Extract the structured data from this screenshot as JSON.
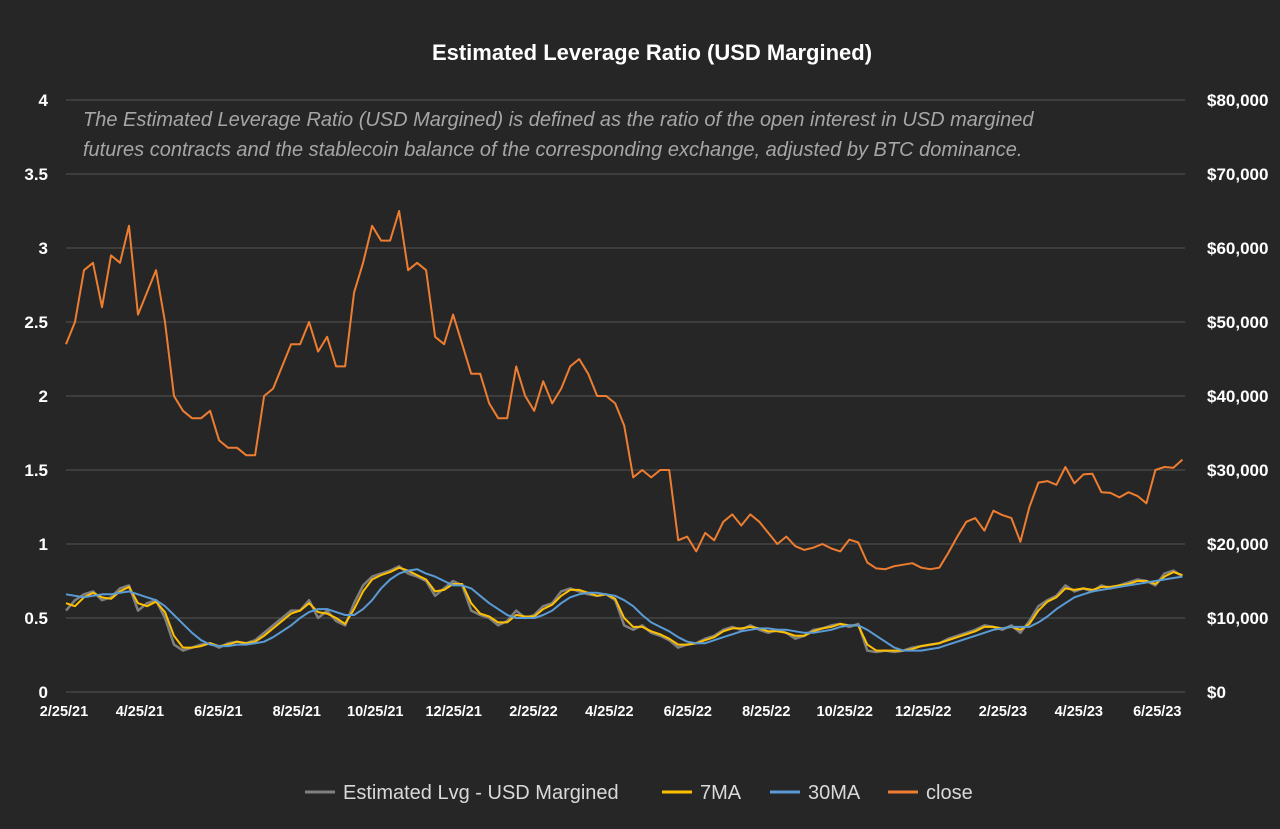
{
  "chart_data": {
    "type": "line",
    "title": "Estimated Leverage Ratio (USD Margined)",
    "annotation": {
      "line1": "The Estimated Leverage Ratio (USD Margined) is defined as the ratio of the open interest in USD margined",
      "line2": "futures contracts and the stablecoin balance of the corresponding exchange, adjusted by BTC dominance."
    },
    "xlim": [
      "2021-02-25",
      "2023-07-15"
    ],
    "x_ticks": [
      {
        "date": "2021-02-25",
        "label": "2/25/21"
      },
      {
        "date": "2021-04-25",
        "label": "4/25/21"
      },
      {
        "date": "2021-06-25",
        "label": "6/25/21"
      },
      {
        "date": "2021-08-25",
        "label": "8/25/21"
      },
      {
        "date": "2021-10-25",
        "label": "10/25/21"
      },
      {
        "date": "2021-12-25",
        "label": "12/25/21"
      },
      {
        "date": "2022-02-25",
        "label": "2/25/22"
      },
      {
        "date": "2022-04-25",
        "label": "4/25/22"
      },
      {
        "date": "2022-06-25",
        "label": "6/25/22"
      },
      {
        "date": "2022-08-25",
        "label": "8/25/22"
      },
      {
        "date": "2022-10-25",
        "label": "10/25/22"
      },
      {
        "date": "2022-12-25",
        "label": "12/25/22"
      },
      {
        "date": "2023-02-25",
        "label": "2/25/23"
      },
      {
        "date": "2023-04-25",
        "label": "4/25/23"
      },
      {
        "date": "2023-06-25",
        "label": "6/25/23"
      }
    ],
    "y_left": {
      "lim": [
        0,
        4
      ],
      "ticks": [
        {
          "v": 0,
          "label": "0"
        },
        {
          "v": 0.5,
          "label": "0.5"
        },
        {
          "v": 1,
          "label": "1"
        },
        {
          "v": 1.5,
          "label": "1.5"
        },
        {
          "v": 2,
          "label": "2"
        },
        {
          "v": 2.5,
          "label": "2.5"
        },
        {
          "v": 3,
          "label": "3"
        },
        {
          "v": 3.5,
          "label": "3.5"
        },
        {
          "v": 4,
          "label": "4"
        }
      ]
    },
    "y_right": {
      "lim": [
        0,
        80000
      ],
      "ticks": [
        {
          "v": 0,
          "label": "$0"
        },
        {
          "v": 10000,
          "label": "$10,000"
        },
        {
          "v": 20000,
          "label": "$20,000"
        },
        {
          "v": 30000,
          "label": "$30,000"
        },
        {
          "v": 40000,
          "label": "$40,000"
        },
        {
          "v": 50000,
          "label": "$50,000"
        },
        {
          "v": 60000,
          "label": "$60,000"
        },
        {
          "v": 70000,
          "label": "$70,000"
        },
        {
          "v": 80000,
          "label": "$80,000"
        }
      ]
    },
    "grid": true,
    "legend_position": "bottom",
    "x": [
      "2021-02-25",
      "2021-03-04",
      "2021-03-11",
      "2021-03-18",
      "2021-03-25",
      "2021-04-01",
      "2021-04-08",
      "2021-04-15",
      "2021-04-22",
      "2021-04-29",
      "2021-05-06",
      "2021-05-13",
      "2021-05-20",
      "2021-05-27",
      "2021-06-03",
      "2021-06-10",
      "2021-06-17",
      "2021-06-24",
      "2021-07-01",
      "2021-07-08",
      "2021-07-15",
      "2021-07-22",
      "2021-07-29",
      "2021-08-05",
      "2021-08-12",
      "2021-08-19",
      "2021-08-26",
      "2021-09-02",
      "2021-09-09",
      "2021-09-16",
      "2021-09-23",
      "2021-09-30",
      "2021-10-07",
      "2021-10-14",
      "2021-10-21",
      "2021-10-28",
      "2021-11-04",
      "2021-11-11",
      "2021-11-18",
      "2021-11-25",
      "2021-12-02",
      "2021-12-09",
      "2021-12-16",
      "2021-12-23",
      "2021-12-30",
      "2022-01-06",
      "2022-01-13",
      "2022-01-20",
      "2022-01-27",
      "2022-02-03",
      "2022-02-10",
      "2022-02-17",
      "2022-02-24",
      "2022-03-03",
      "2022-03-10",
      "2022-03-17",
      "2022-03-24",
      "2022-03-31",
      "2022-04-07",
      "2022-04-14",
      "2022-04-21",
      "2022-04-28",
      "2022-05-05",
      "2022-05-12",
      "2022-05-19",
      "2022-05-26",
      "2022-06-02",
      "2022-06-09",
      "2022-06-16",
      "2022-06-23",
      "2022-06-30",
      "2022-07-07",
      "2022-07-14",
      "2022-07-21",
      "2022-07-28",
      "2022-08-04",
      "2022-08-11",
      "2022-08-18",
      "2022-08-25",
      "2022-09-01",
      "2022-09-08",
      "2022-09-15",
      "2022-09-22",
      "2022-09-29",
      "2022-10-06",
      "2022-10-13",
      "2022-10-20",
      "2022-10-27",
      "2022-11-03",
      "2022-11-10",
      "2022-11-17",
      "2022-11-24",
      "2022-12-01",
      "2022-12-08",
      "2022-12-15",
      "2022-12-22",
      "2022-12-29",
      "2023-01-05",
      "2023-01-12",
      "2023-01-19",
      "2023-01-26",
      "2023-02-02",
      "2023-02-09",
      "2023-02-16",
      "2023-02-23",
      "2023-03-02",
      "2023-03-09",
      "2023-03-16",
      "2023-03-23",
      "2023-03-30",
      "2023-04-06",
      "2023-04-13",
      "2023-04-20",
      "2023-04-27",
      "2023-05-04",
      "2023-05-11",
      "2023-05-18",
      "2023-05-25",
      "2023-06-01",
      "2023-06-08",
      "2023-06-15",
      "2023-06-22",
      "2023-06-29",
      "2023-07-06",
      "2023-07-13"
    ],
    "series": [
      {
        "name": "Estimated Lvg - USD Margined",
        "axis": "left",
        "color": "#7f7f7f",
        "values": [
          0.55,
          0.62,
          0.66,
          0.68,
          0.62,
          0.64,
          0.7,
          0.72,
          0.55,
          0.6,
          0.62,
          0.5,
          0.32,
          0.28,
          0.3,
          0.32,
          0.33,
          0.3,
          0.33,
          0.34,
          0.33,
          0.35,
          0.4,
          0.45,
          0.5,
          0.55,
          0.55,
          0.62,
          0.5,
          0.55,
          0.48,
          0.45,
          0.6,
          0.72,
          0.78,
          0.8,
          0.82,
          0.85,
          0.8,
          0.78,
          0.75,
          0.65,
          0.7,
          0.75,
          0.72,
          0.55,
          0.52,
          0.5,
          0.45,
          0.48,
          0.55,
          0.5,
          0.52,
          0.58,
          0.6,
          0.68,
          0.7,
          0.68,
          0.66,
          0.65,
          0.66,
          0.62,
          0.45,
          0.42,
          0.45,
          0.4,
          0.38,
          0.35,
          0.3,
          0.32,
          0.33,
          0.36,
          0.38,
          0.42,
          0.44,
          0.42,
          0.45,
          0.42,
          0.4,
          0.42,
          0.4,
          0.36,
          0.38,
          0.42,
          0.43,
          0.45,
          0.46,
          0.44,
          0.46,
          0.28,
          0.27,
          0.28,
          0.27,
          0.28,
          0.3,
          0.31,
          0.32,
          0.33,
          0.36,
          0.38,
          0.4,
          0.42,
          0.45,
          0.44,
          0.42,
          0.45,
          0.4,
          0.48,
          0.58,
          0.62,
          0.65,
          0.72,
          0.68,
          0.7,
          0.68,
          0.72,
          0.7,
          0.72,
          0.74,
          0.76,
          0.75,
          0.72,
          0.8,
          0.82,
          0.78
        ]
      },
      {
        "name": "7MA",
        "axis": "left",
        "color": "#ffc000",
        "values": [
          0.6,
          0.58,
          0.64,
          0.67,
          0.64,
          0.63,
          0.68,
          0.71,
          0.6,
          0.58,
          0.61,
          0.54,
          0.38,
          0.3,
          0.3,
          0.31,
          0.33,
          0.31,
          0.32,
          0.34,
          0.33,
          0.34,
          0.38,
          0.43,
          0.48,
          0.53,
          0.55,
          0.6,
          0.54,
          0.53,
          0.5,
          0.46,
          0.56,
          0.68,
          0.76,
          0.79,
          0.81,
          0.84,
          0.82,
          0.79,
          0.76,
          0.68,
          0.69,
          0.73,
          0.73,
          0.6,
          0.53,
          0.51,
          0.47,
          0.47,
          0.52,
          0.51,
          0.51,
          0.56,
          0.59,
          0.65,
          0.69,
          0.69,
          0.67,
          0.65,
          0.66,
          0.63,
          0.5,
          0.44,
          0.44,
          0.41,
          0.39,
          0.36,
          0.32,
          0.32,
          0.33,
          0.35,
          0.37,
          0.41,
          0.43,
          0.43,
          0.44,
          0.43,
          0.41,
          0.41,
          0.4,
          0.38,
          0.38,
          0.41,
          0.43,
          0.44,
          0.46,
          0.45,
          0.45,
          0.32,
          0.28,
          0.28,
          0.28,
          0.28,
          0.29,
          0.31,
          0.32,
          0.33,
          0.35,
          0.37,
          0.39,
          0.41,
          0.44,
          0.44,
          0.43,
          0.44,
          0.42,
          0.46,
          0.55,
          0.61,
          0.64,
          0.7,
          0.69,
          0.7,
          0.69,
          0.71,
          0.71,
          0.72,
          0.73,
          0.75,
          0.75,
          0.73,
          0.78,
          0.81,
          0.79
        ]
      },
      {
        "name": "30MA",
        "axis": "left",
        "color": "#5b9bd5",
        "values": [
          0.66,
          0.65,
          0.64,
          0.65,
          0.66,
          0.66,
          0.67,
          0.68,
          0.66,
          0.64,
          0.62,
          0.58,
          0.52,
          0.46,
          0.4,
          0.35,
          0.32,
          0.31,
          0.31,
          0.32,
          0.32,
          0.33,
          0.34,
          0.37,
          0.41,
          0.45,
          0.5,
          0.54,
          0.56,
          0.56,
          0.54,
          0.52,
          0.52,
          0.56,
          0.62,
          0.7,
          0.76,
          0.8,
          0.82,
          0.83,
          0.8,
          0.78,
          0.75,
          0.72,
          0.72,
          0.7,
          0.65,
          0.6,
          0.56,
          0.52,
          0.5,
          0.5,
          0.5,
          0.52,
          0.55,
          0.6,
          0.64,
          0.66,
          0.67,
          0.67,
          0.66,
          0.65,
          0.62,
          0.58,
          0.52,
          0.47,
          0.44,
          0.41,
          0.37,
          0.34,
          0.33,
          0.33,
          0.35,
          0.37,
          0.39,
          0.41,
          0.42,
          0.43,
          0.43,
          0.42,
          0.42,
          0.41,
          0.4,
          0.4,
          0.41,
          0.42,
          0.44,
          0.45,
          0.45,
          0.42,
          0.38,
          0.34,
          0.3,
          0.28,
          0.28,
          0.28,
          0.29,
          0.3,
          0.32,
          0.34,
          0.36,
          0.38,
          0.4,
          0.42,
          0.43,
          0.44,
          0.44,
          0.44,
          0.47,
          0.51,
          0.56,
          0.6,
          0.64,
          0.66,
          0.68,
          0.69,
          0.7,
          0.71,
          0.72,
          0.73,
          0.74,
          0.75,
          0.76,
          0.77,
          0.78
        ]
      },
      {
        "name": "close",
        "axis": "right",
        "color": "#ed7d31",
        "values": [
          47000,
          50000,
          57000,
          58000,
          52000,
          59000,
          58000,
          63000,
          51000,
          54000,
          57000,
          50000,
          40000,
          38000,
          37000,
          37000,
          38000,
          34000,
          33000,
          33000,
          32000,
          32000,
          40000,
          41000,
          44000,
          47000,
          47000,
          50000,
          46000,
          48000,
          44000,
          44000,
          54000,
          58000,
          63000,
          61000,
          61000,
          65000,
          57000,
          58000,
          57000,
          48000,
          47000,
          51000,
          47000,
          43000,
          43000,
          39000,
          37000,
          37000,
          44000,
          40000,
          38000,
          42000,
          39000,
          41000,
          44000,
          45000,
          43000,
          40000,
          40000,
          39000,
          36000,
          29000,
          30000,
          29000,
          30000,
          30000,
          20500,
          21000,
          19000,
          21500,
          20500,
          23000,
          24000,
          22500,
          24000,
          23000,
          21500,
          20000,
          21000,
          19700,
          19200,
          19500,
          20000,
          19400,
          19000,
          20600,
          20200,
          17500,
          16700,
          16600,
          17000,
          17200,
          17400,
          16800,
          16600,
          16800,
          18800,
          21000,
          23000,
          23500,
          21800,
          24500,
          23900,
          23500,
          20300,
          25000,
          28300,
          28500,
          28000,
          30400,
          28200,
          29400,
          29500,
          27000,
          26900,
          26300,
          27000,
          26500,
          25500,
          30000,
          30400,
          30300,
          31400
        ]
      }
    ]
  }
}
